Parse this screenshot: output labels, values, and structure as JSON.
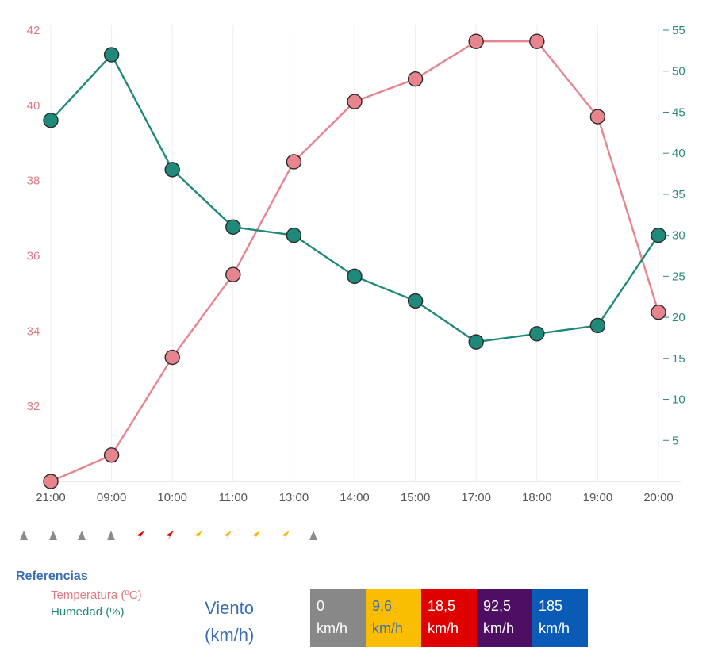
{
  "chart_data": {
    "type": "line",
    "x": [
      "21:00",
      "09:00",
      "10:00",
      "11:00",
      "13:00",
      "14:00",
      "15:00",
      "17:00",
      "18:00",
      "19:00",
      "20:00"
    ],
    "series": [
      {
        "name": "Temperatura (ºC)",
        "axis": "left",
        "color": "#e8848e",
        "values": [
          30.0,
          30.7,
          33.3,
          35.5,
          38.5,
          40.1,
          40.7,
          41.7,
          41.7,
          39.7,
          34.5
        ]
      },
      {
        "name": "Humedad (%)",
        "axis": "right",
        "color": "#1f8a7a",
        "values": [
          44,
          52,
          38,
          31,
          30,
          25,
          22,
          17,
          18,
          19,
          30
        ]
      }
    ],
    "y_left": {
      "range": [
        30,
        42
      ],
      "ticks": [
        "32",
        "34",
        "36",
        "38",
        "40",
        "42"
      ],
      "color": "#e07b85"
    },
    "y_right": {
      "range": [
        0,
        55
      ],
      "ticks": [
        "5",
        "10",
        "15",
        "20",
        "25",
        "30",
        "35",
        "40",
        "45",
        "50",
        "55"
      ],
      "color": "#2a8a7e"
    },
    "grid": "vertical",
    "wind_arrows": [
      {
        "speed_kmh": 0,
        "color": "#8a8a8a"
      },
      {
        "speed_kmh": 0,
        "color": "#8a8a8a"
      },
      {
        "speed_kmh": 0,
        "color": "#8a8a8a"
      },
      {
        "speed_kmh": 0,
        "color": "#8a8a8a"
      },
      {
        "speed_kmh": 18.5,
        "color": "#e00000"
      },
      {
        "speed_kmh": 18.5,
        "color": "#e00000"
      },
      {
        "speed_kmh": 9.6,
        "color": "#f7b500"
      },
      {
        "speed_kmh": 9.6,
        "color": "#f7b500"
      },
      {
        "speed_kmh": 9.6,
        "color": "#f7b500"
      },
      {
        "speed_kmh": 9.6,
        "color": "#f7b500"
      },
      {
        "speed_kmh": 0,
        "color": "#8a8a8a"
      }
    ]
  },
  "legend": {
    "title": "Referencias",
    "items": [
      {
        "label": "Temperatura (ºC)",
        "color": "#e07b85"
      },
      {
        "label": "Humedad (%)",
        "color": "#1f8a7a"
      }
    ]
  },
  "wind_scale": {
    "label_line1": "Viento",
    "label_line2": "(km/h)",
    "cells": [
      {
        "value": "0",
        "unit": "km/h",
        "bg": "#888888",
        "fg": "#ffffff"
      },
      {
        "value": "9,6",
        "unit": "km/h",
        "bg": "#fbbd00",
        "fg": "#3a6fb3"
      },
      {
        "value": "18,5",
        "unit": "km/h",
        "bg": "#e00000",
        "fg": "#ffffff"
      },
      {
        "value": "92,5",
        "unit": "km/h",
        "bg": "#4e0f63",
        "fg": "#ffffff"
      },
      {
        "value": "185",
        "unit": "km/h",
        "bg": "#0a5bb5",
        "fg": "#ffffff"
      }
    ]
  }
}
